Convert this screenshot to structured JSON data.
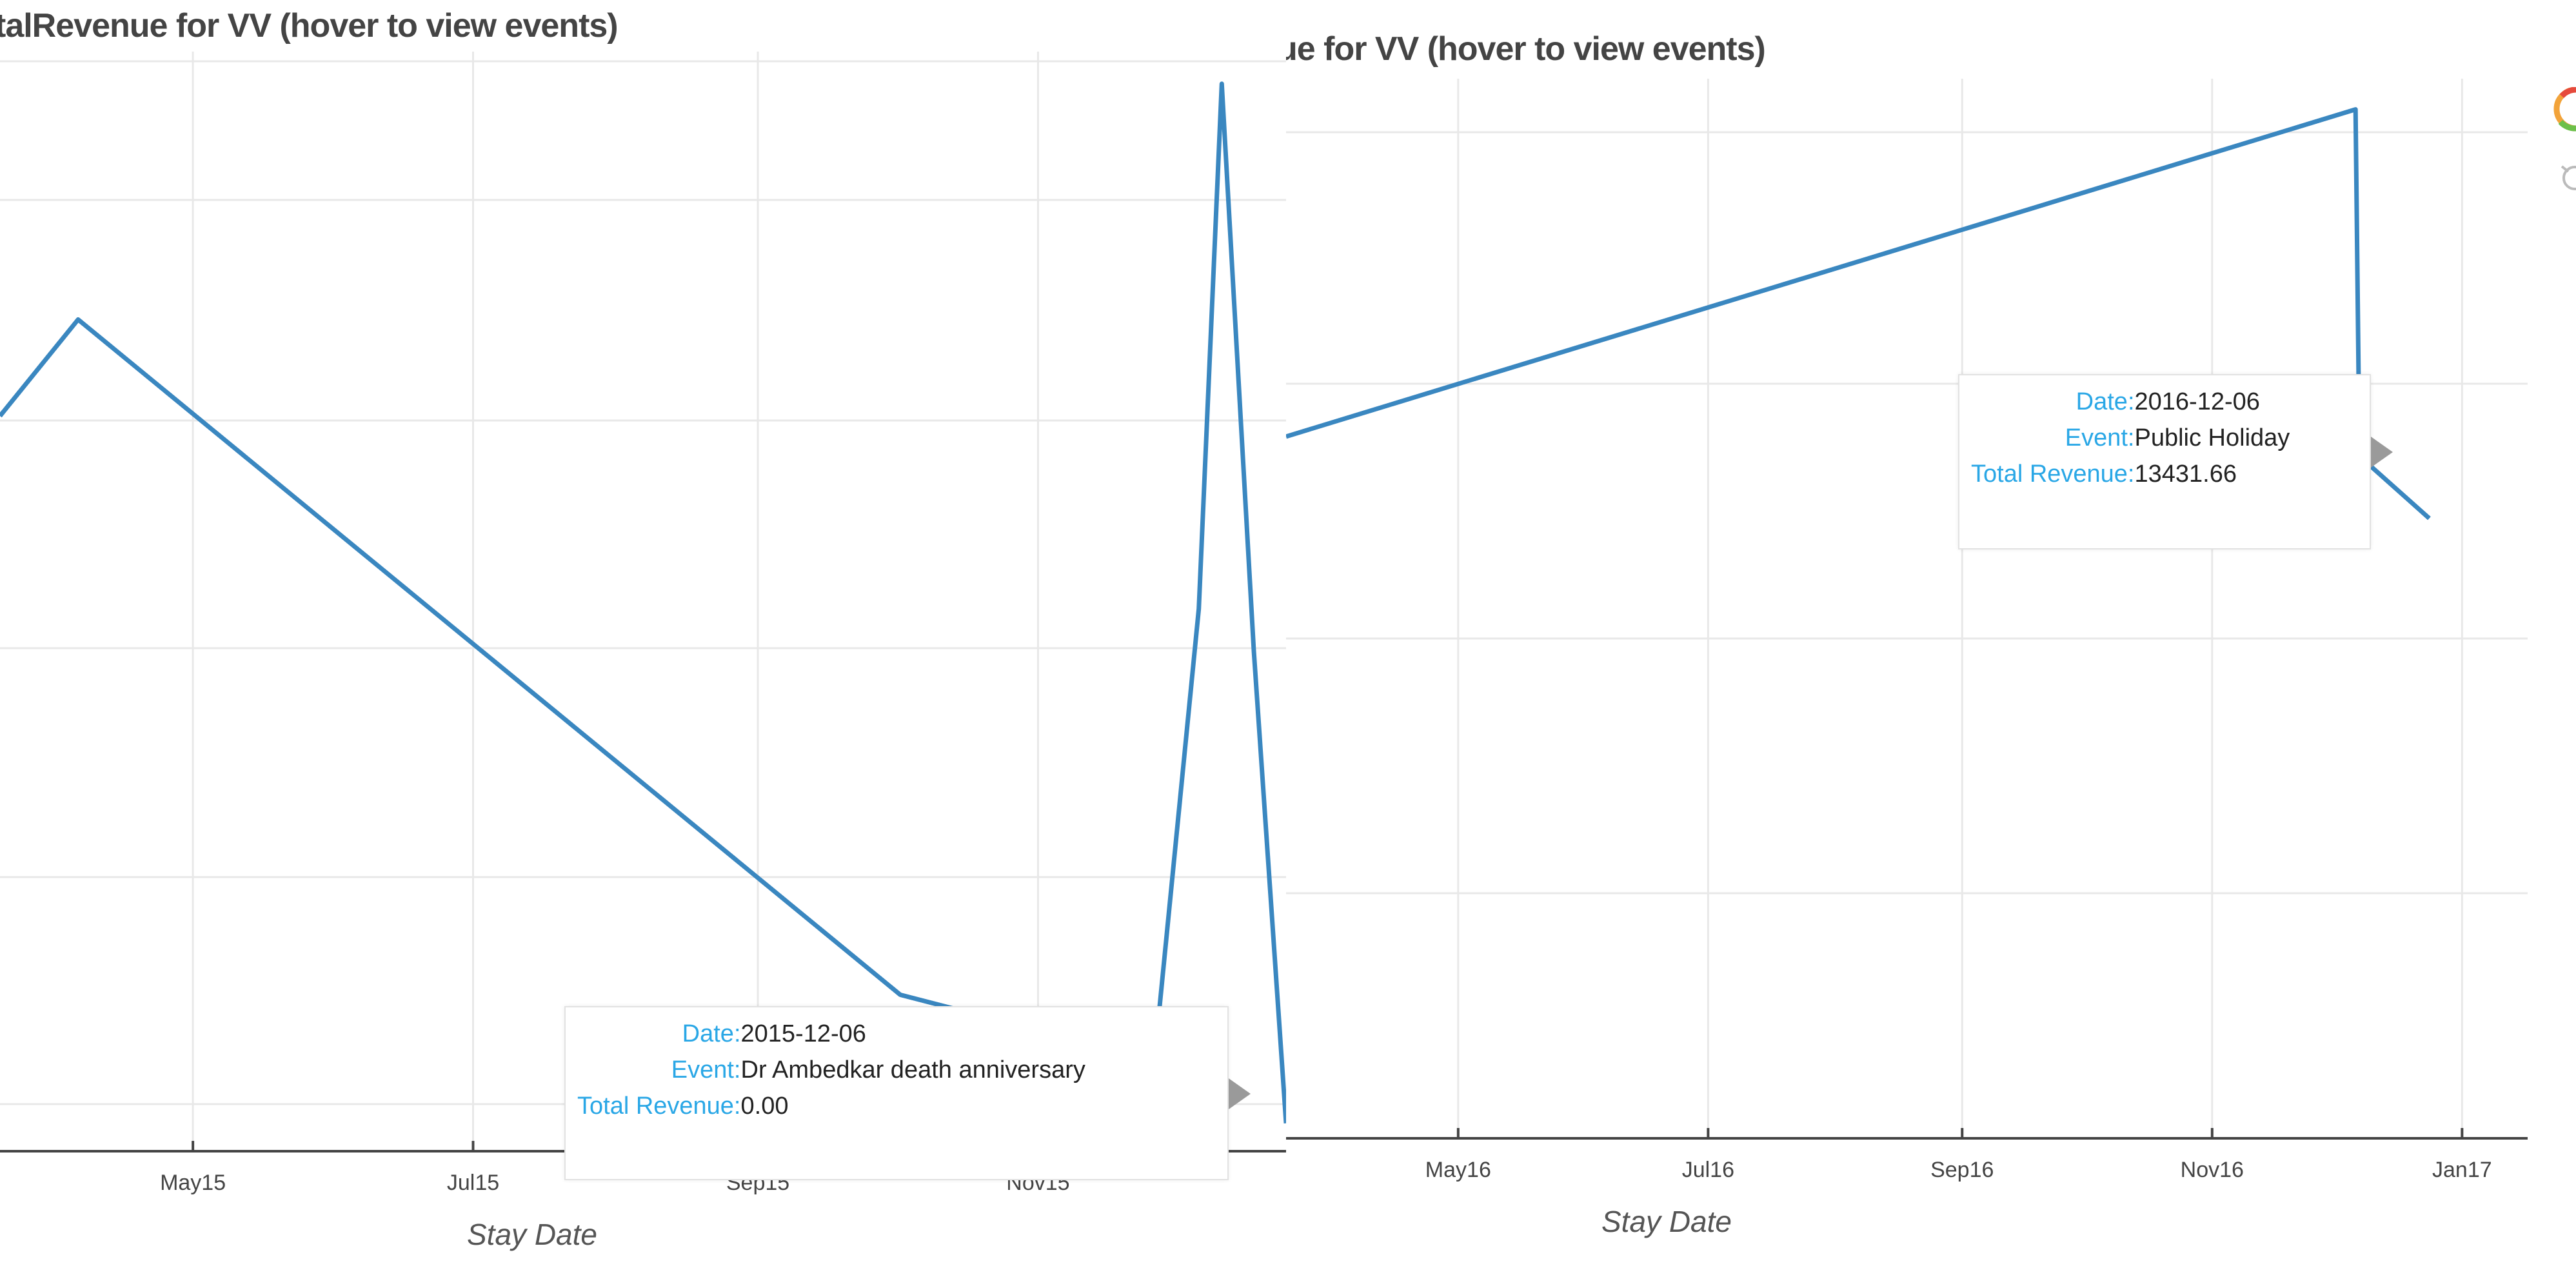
{
  "charts": {
    "left": {
      "title": "talRevenue for VV (hover to view events)",
      "xlabel": "Stay Date",
      "ticks": [
        "May15",
        "Jul15",
        "Sep15",
        "Nov15"
      ],
      "tooltip": {
        "date_key": "Date:",
        "date_value": "2015-12-06",
        "event_key": "Event:",
        "event_value": "Dr Ambedkar death anniversary",
        "revenue_key": "Total Revenue:",
        "revenue_value": "0.00"
      }
    },
    "right": {
      "title": "ue for VV (hover to view events)",
      "xlabel": "Stay Date",
      "ticks": [
        "May16",
        "Jul16",
        "Sep16",
        "Nov16",
        "Jan17"
      ],
      "tooltip": {
        "date_key": "Date:",
        "date_value": "2016-12-06",
        "event_key": "Event:",
        "event_value": "Public Holiday",
        "revenue_key": "Total Revenue:",
        "revenue_value": "13431.66"
      }
    }
  },
  "toolbar": {
    "logo_icon": "bokeh-logo-icon",
    "reset_icon": "reset-icon"
  },
  "colors": {
    "line": "#3a87c0",
    "grid": "#e8e8e8",
    "axis": "#444444",
    "tooltip_key": "#2aa7e6",
    "pointer": "#9a9a9a"
  },
  "chart_data": [
    {
      "type": "line",
      "title": "talRevenue for VV (hover to view events)",
      "xlabel": "Stay Date",
      "ylabel": "",
      "x_tick_labels": [
        "May15",
        "Jul15",
        "Sep15",
        "Nov15"
      ],
      "grid": true,
      "series": [
        {
          "x": [
            "2015-03-20",
            "2015-04-06",
            "2015-10-02",
            "2015-10-20",
            "2015-11-26",
            "2015-12-06",
            "2015-12-11",
            "2015-12-18",
            "2015-12-25"
          ],
          "y": [
            0.66,
            0.75,
            0.12,
            0.1,
            0.045,
            0.48,
            0.97,
            0.44,
            0.0
          ]
        }
      ],
      "ylim": [
        -0.02,
        1.0
      ],
      "yticks_shown": false,
      "hover": {
        "date": "2015-12-06",
        "event": "Dr Ambedkar death anniversary",
        "total_revenue": 0.0
      }
    },
    {
      "type": "line",
      "title": "ue for VV (hover to view events)",
      "xlabel": "Stay Date",
      "ylabel": "",
      "x_tick_labels": [
        "May16",
        "Jul16",
        "Sep16",
        "Nov16",
        "Jan17"
      ],
      "grid": true,
      "series": [
        {
          "x": [
            "2016-03-20",
            "2016-12-06",
            "2016-12-07",
            "2016-12-10",
            "2016-12-24"
          ],
          "y": [
            0.68,
            1.0,
            0.65,
            0.65,
            0.6
          ]
        }
      ],
      "ylim": [
        0.0,
        1.03
      ],
      "yticks_shown": false,
      "hover": {
        "date": "2016-12-06",
        "event": "Public Holiday",
        "total_revenue": 13431.66
      }
    }
  ]
}
